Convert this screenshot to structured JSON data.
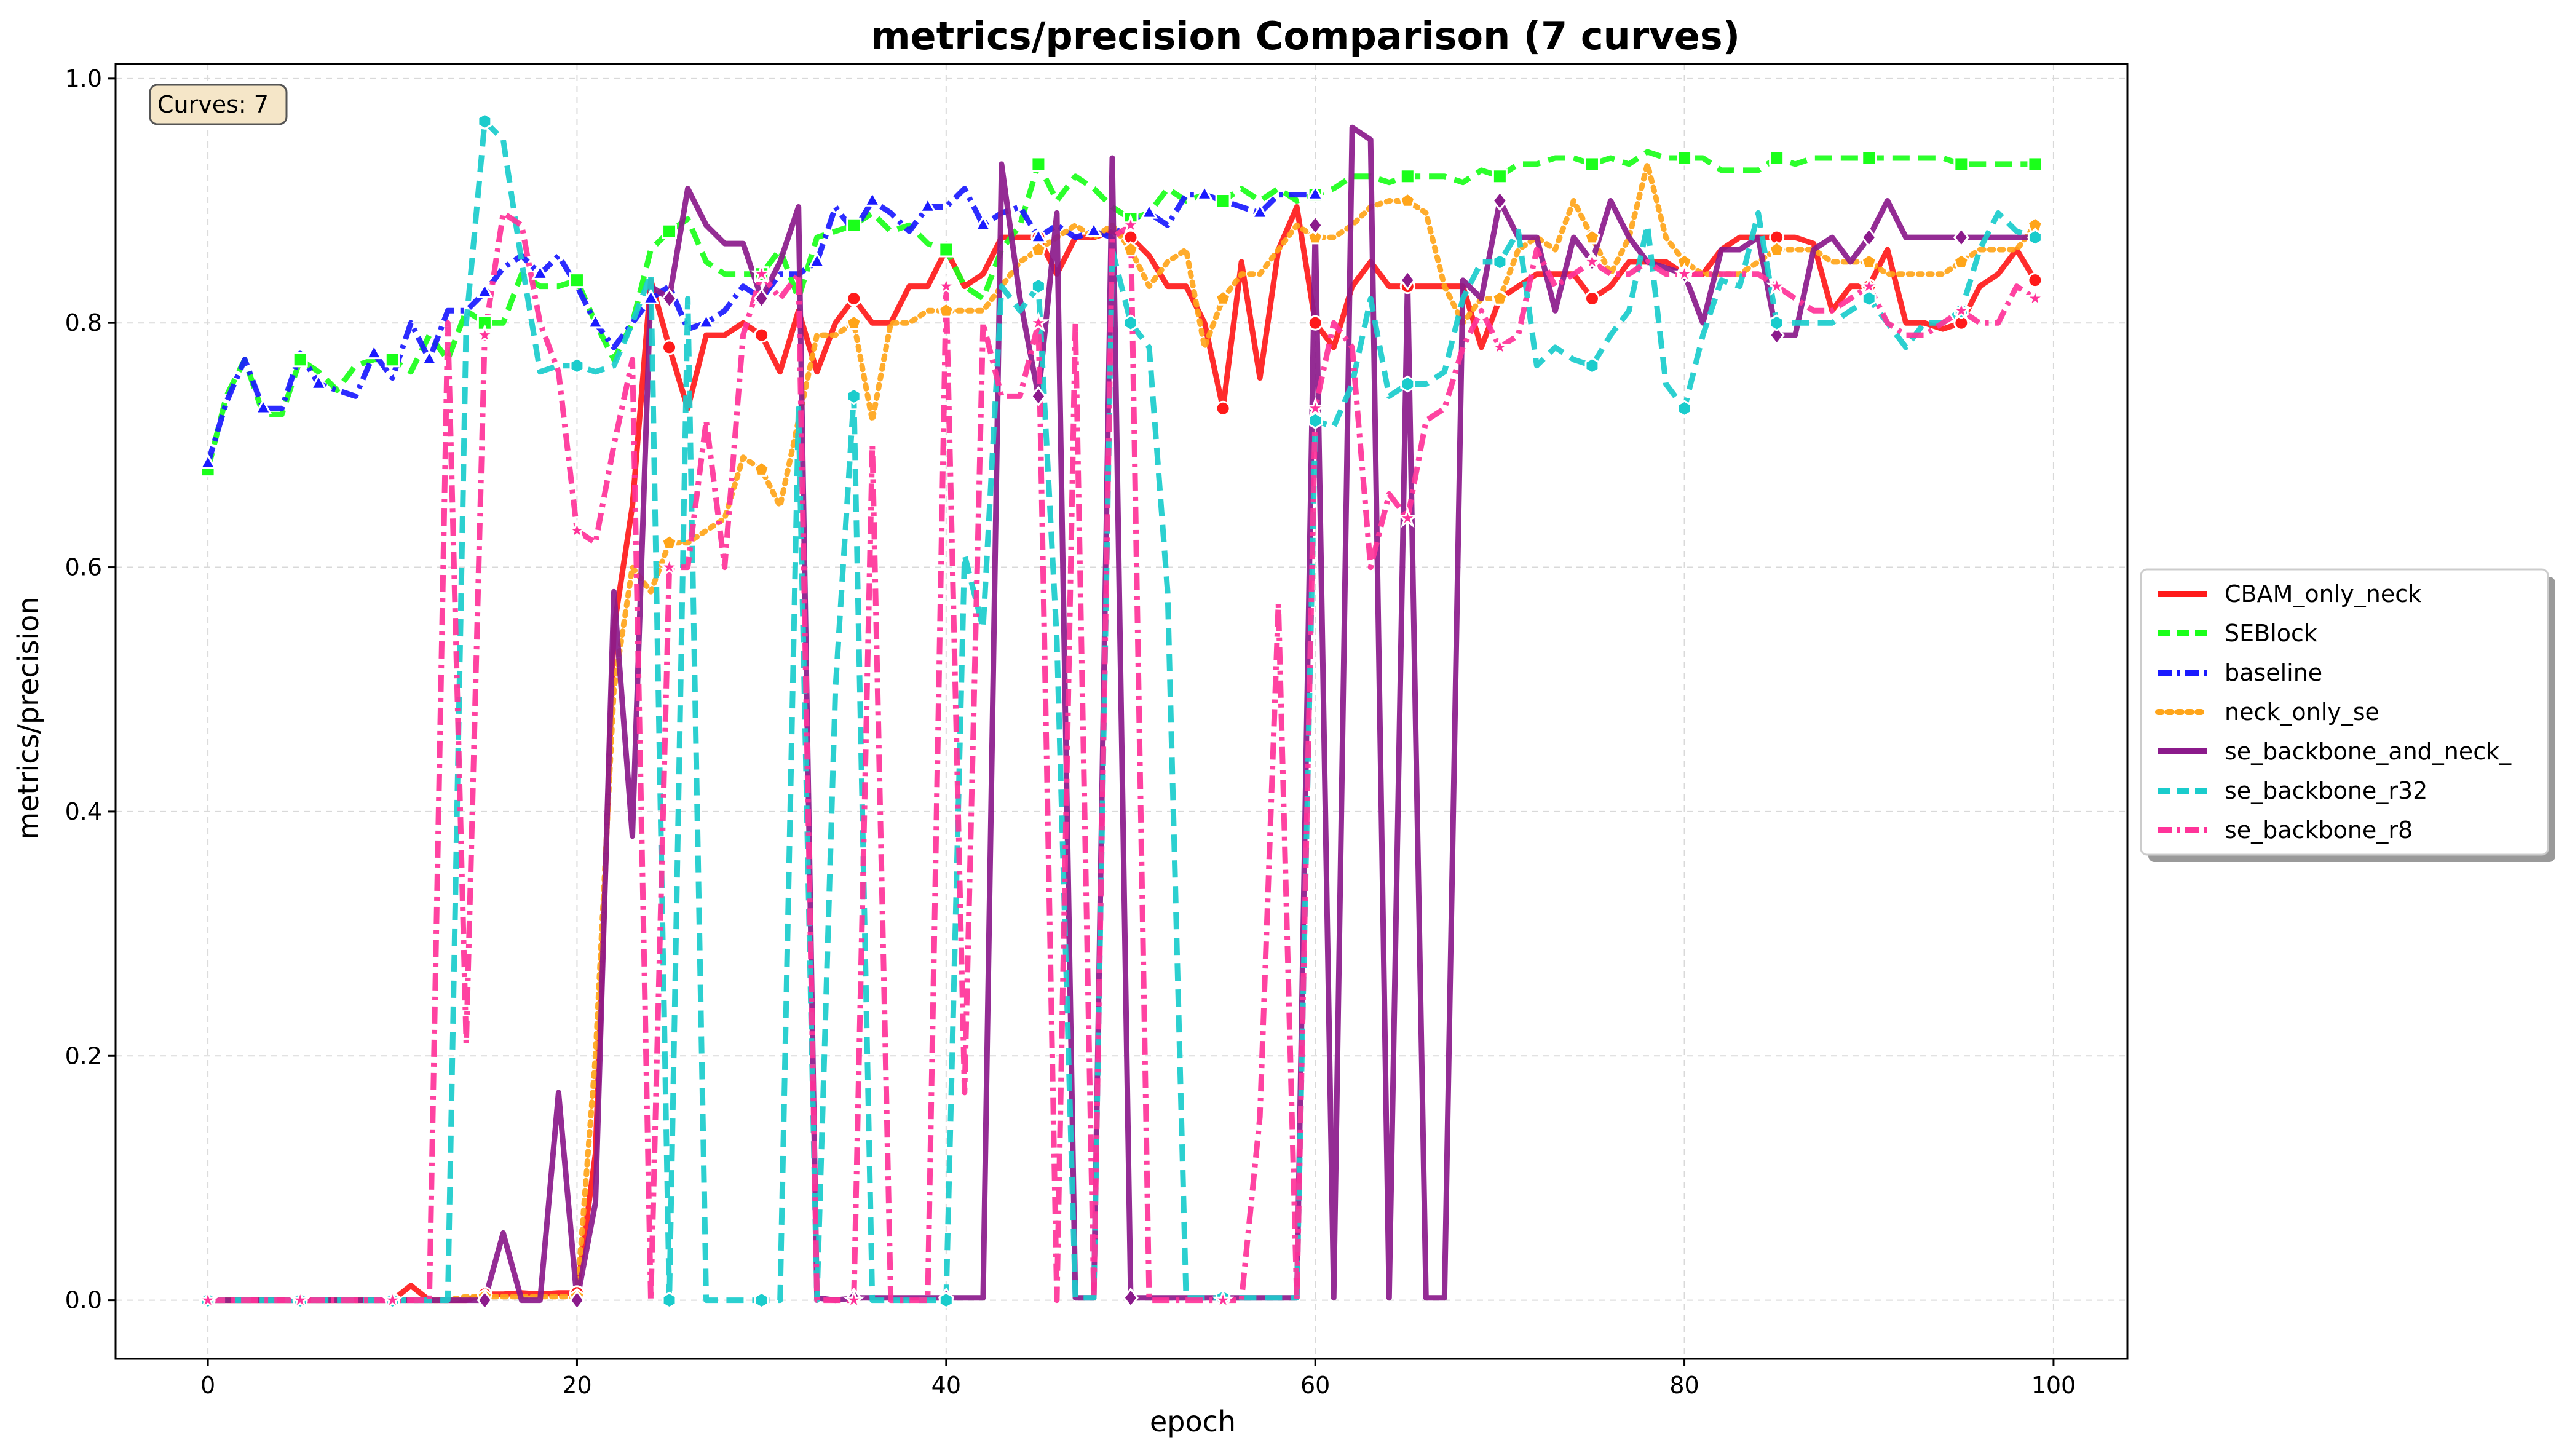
{
  "chart_data": {
    "type": "line",
    "title": "metrics/precision Comparison (7 curves)",
    "xlabel": "epoch",
    "ylabel": "metrics/precision",
    "xlim": [
      -5,
      104
    ],
    "ylim": [
      -0.048,
      1.012
    ],
    "x_ticks": [
      0,
      20,
      40,
      60,
      80,
      100
    ],
    "y_ticks": [
      0.0,
      0.2,
      0.4,
      0.6,
      0.8,
      1.0
    ],
    "x_tick_labels": [
      "0",
      "20",
      "40",
      "60",
      "80",
      "100"
    ],
    "y_tick_labels": [
      "0.0",
      "0.2",
      "0.4",
      "0.6",
      "0.8",
      "1.0"
    ],
    "grid": true,
    "legend_position": "right-outside",
    "annotation": "Curves: 7",
    "series": [
      {
        "name": "CBAM_only_neck",
        "color": "#ff1a1a",
        "dash": "solid",
        "marker": "circle",
        "marker_step": 5,
        "values": [
          0.0,
          0.0,
          0.0,
          0.0,
          0.0,
          0.0,
          0.0,
          0.0,
          0.0,
          0.0,
          0.0,
          0.012,
          0.0,
          0.0,
          0.0,
          0.005,
          0.005,
          0.006,
          0.005,
          0.006,
          0.006,
          0.12,
          0.55,
          0.65,
          0.835,
          0.78,
          0.73,
          0.79,
          0.79,
          0.8,
          0.79,
          0.76,
          0.81,
          0.76,
          0.8,
          0.82,
          0.8,
          0.8,
          0.83,
          0.83,
          0.86,
          0.83,
          0.84,
          0.87,
          0.87,
          0.87,
          0.84,
          0.87,
          0.87,
          0.875,
          0.87,
          0.855,
          0.83,
          0.83,
          0.8,
          0.73,
          0.85,
          0.755,
          0.86,
          0.895,
          0.8,
          0.78,
          0.83,
          0.85,
          0.83,
          0.83,
          0.83,
          0.83,
          0.83,
          0.78,
          0.82,
          0.83,
          0.84,
          0.84,
          0.84,
          0.82,
          0.83,
          0.85,
          0.85,
          0.85,
          0.84,
          0.84,
          0.86,
          0.87,
          0.87,
          0.87,
          0.87,
          0.865,
          0.81,
          0.83,
          0.83,
          0.86,
          0.8,
          0.8,
          0.795,
          0.8,
          0.83,
          0.84,
          0.86,
          0.835
        ]
      },
      {
        "name": "SEBlock",
        "color": "#1aff1a",
        "dash": "dash",
        "marker": "square",
        "marker_step": 5,
        "values": [
          0.68,
          0.74,
          0.77,
          0.725,
          0.725,
          0.77,
          0.76,
          0.745,
          0.765,
          0.77,
          0.77,
          0.76,
          0.79,
          0.77,
          0.81,
          0.8,
          0.8,
          0.84,
          0.83,
          0.83,
          0.835,
          0.8,
          0.77,
          0.8,
          0.86,
          0.875,
          0.885,
          0.85,
          0.84,
          0.84,
          0.84,
          0.86,
          0.82,
          0.87,
          0.875,
          0.88,
          0.89,
          0.875,
          0.88,
          0.865,
          0.86,
          0.83,
          0.82,
          0.86,
          0.88,
          0.93,
          0.9,
          0.92,
          0.91,
          0.895,
          0.885,
          0.89,
          0.91,
          0.9,
          0.905,
          0.9,
          0.91,
          0.9,
          0.91,
          0.9,
          0.905,
          0.91,
          0.92,
          0.92,
          0.915,
          0.92,
          0.92,
          0.92,
          0.915,
          0.925,
          0.92,
          0.93,
          0.93,
          0.935,
          0.935,
          0.93,
          0.935,
          0.93,
          0.94,
          0.935,
          0.935,
          0.935,
          0.925,
          0.925,
          0.925,
          0.935,
          0.93,
          0.935,
          0.935,
          0.935,
          0.935,
          0.935,
          0.935,
          0.935,
          0.935,
          0.93,
          0.93,
          0.93,
          0.93,
          0.93
        ]
      },
      {
        "name": "baseline",
        "color": "#1a1aff",
        "dash": "dashdot",
        "marker": "triangle",
        "marker_step": 3,
        "values": [
          0.685,
          0.735,
          0.77,
          0.73,
          0.73,
          0.775,
          0.75,
          0.745,
          0.74,
          0.775,
          0.755,
          0.8,
          0.77,
          0.81,
          0.81,
          0.825,
          0.845,
          0.855,
          0.84,
          0.855,
          0.83,
          0.8,
          0.78,
          0.8,
          0.82,
          0.83,
          0.795,
          0.8,
          0.81,
          0.83,
          0.82,
          0.84,
          0.84,
          0.85,
          0.895,
          0.875,
          0.9,
          0.89,
          0.875,
          0.895,
          0.895,
          0.91,
          0.88,
          0.89,
          0.895,
          0.87,
          0.88,
          0.87,
          0.875,
          0.87,
          0.885,
          0.89,
          0.88,
          0.905,
          0.905,
          0.9,
          0.895,
          0.89,
          0.905,
          0.905,
          0.905
        ]
      },
      {
        "name": "neck_only_se",
        "color": "#ffa51a",
        "dash": "dot",
        "marker": "pentagon",
        "marker_step": 5,
        "values": [
          0.0,
          0.0,
          0.0,
          0.0,
          0.0,
          0.0,
          0.0,
          0.0,
          0.0,
          0.0,
          0.0,
          0.0,
          0.0,
          0.0,
          0.003,
          0.003,
          0.003,
          0.003,
          0.003,
          0.003,
          0.003,
          0.2,
          0.5,
          0.6,
          0.58,
          0.62,
          0.62,
          0.63,
          0.64,
          0.69,
          0.68,
          0.65,
          0.72,
          0.79,
          0.79,
          0.8,
          0.72,
          0.8,
          0.8,
          0.81,
          0.81,
          0.81,
          0.81,
          0.83,
          0.85,
          0.86,
          0.87,
          0.88,
          0.87,
          0.88,
          0.86,
          0.83,
          0.85,
          0.86,
          0.78,
          0.82,
          0.84,
          0.84,
          0.86,
          0.88,
          0.87,
          0.87,
          0.88,
          0.895,
          0.9,
          0.9,
          0.89,
          0.83,
          0.8,
          0.82,
          0.82,
          0.86,
          0.87,
          0.86,
          0.9,
          0.87,
          0.84,
          0.87,
          0.93,
          0.87,
          0.85,
          0.84,
          0.84,
          0.84,
          0.85,
          0.86,
          0.86,
          0.86,
          0.85,
          0.85,
          0.85,
          0.84,
          0.84,
          0.84,
          0.84,
          0.85,
          0.86,
          0.86,
          0.86,
          0.88
        ]
      },
      {
        "name": "se_backbone_and_neck_",
        "color": "#8b1a8b",
        "dash": "solid",
        "marker": "diamond",
        "marker_step": 5,
        "values": [
          0.0,
          0.0,
          0.0,
          0.0,
          0.0,
          0.0,
          0.0,
          0.0,
          0.0,
          0.0,
          0.0,
          0.0,
          0.0,
          0.0,
          0.0,
          0.0,
          0.055,
          0.0,
          0.0,
          0.17,
          0.0,
          0.08,
          0.58,
          0.38,
          0.83,
          0.82,
          0.91,
          0.88,
          0.865,
          0.865,
          0.82,
          0.85,
          0.895,
          0.002,
          0.0,
          0.002,
          0.002,
          0.002,
          0.002,
          0.002,
          0.002,
          0.002,
          0.002,
          0.93,
          0.82,
          0.74,
          0.89,
          0.002,
          0.002,
          0.935,
          0.002,
          0.002,
          0.002,
          0.002,
          0.002,
          0.002,
          0.002,
          0.002,
          0.002,
          0.002,
          0.88,
          0.002,
          0.96,
          0.95,
          0.002,
          0.835,
          0.002,
          0.002,
          0.835,
          0.82,
          0.9,
          0.87,
          0.87,
          0.81,
          0.87,
          0.85,
          0.9,
          0.87,
          0.85,
          0.845,
          0.84,
          0.8,
          0.86,
          0.86,
          0.87,
          0.79,
          0.79,
          0.86,
          0.87,
          0.85,
          0.87,
          0.9,
          0.87,
          0.87,
          0.87,
          0.87,
          0.87,
          0.87,
          0.87,
          0.87
        ]
      },
      {
        "name": "se_backbone_r32",
        "color": "#1acccc",
        "dash": "dash",
        "marker": "hexagon",
        "marker_step": 5,
        "values": [
          0.0,
          0.0,
          0.0,
          0.0,
          0.0,
          0.0,
          0.0,
          0.0,
          0.0,
          0.0,
          0.0,
          0.0,
          0.0,
          0.0,
          0.8,
          0.965,
          0.95,
          0.85,
          0.76,
          0.765,
          0.765,
          0.76,
          0.765,
          0.8,
          0.84,
          0.0,
          0.82,
          0.0,
          0.0,
          0.0,
          0.0,
          0.0,
          0.73,
          0.0,
          0.5,
          0.74,
          0.0,
          0.0,
          0.0,
          0.0,
          0.0,
          0.61,
          0.55,
          0.83,
          0.81,
          0.83,
          0.54,
          0.002,
          0.002,
          0.86,
          0.8,
          0.78,
          0.58,
          0.002,
          0.002,
          0.002,
          0.002,
          0.002,
          0.002,
          0.002,
          0.72,
          0.715,
          0.75,
          0.82,
          0.74,
          0.75,
          0.75,
          0.76,
          0.82,
          0.85,
          0.85,
          0.875,
          0.765,
          0.78,
          0.77,
          0.765,
          0.79,
          0.81,
          0.88,
          0.75,
          0.73,
          0.79,
          0.835,
          0.83,
          0.89,
          0.8,
          0.8,
          0.8,
          0.8,
          0.81,
          0.82,
          0.8,
          0.78,
          0.8,
          0.8,
          0.81,
          0.86,
          0.89,
          0.875,
          0.87
        ]
      },
      {
        "name": "se_backbone_r8",
        "color": "#ff3399",
        "dash": "dashdot",
        "marker": "star",
        "marker_step": 5,
        "values": [
          0.0,
          0.0,
          0.0,
          0.0,
          0.0,
          0.0,
          0.0,
          0.0,
          0.0,
          0.0,
          0.0,
          0.0,
          0.0,
          0.8,
          0.21,
          0.79,
          0.89,
          0.88,
          0.8,
          0.76,
          0.63,
          0.62,
          0.7,
          0.77,
          0.0,
          0.6,
          0.6,
          0.72,
          0.6,
          0.79,
          0.84,
          0.82,
          0.84,
          0.0,
          0.0,
          0.0,
          0.7,
          0.0,
          0.0,
          0.0,
          0.83,
          0.17,
          0.8,
          0.74,
          0.74,
          0.8,
          0.0,
          0.8,
          0.002,
          0.87,
          0.88,
          0.0,
          0.0,
          0.0,
          0.0,
          0.0,
          0.0,
          0.15,
          0.57,
          0.0,
          0.73,
          0.8,
          0.78,
          0.6,
          0.66,
          0.64,
          0.72,
          0.73,
          0.78,
          0.81,
          0.78,
          0.79,
          0.86,
          0.83,
          0.84,
          0.85,
          0.84,
          0.84,
          0.85,
          0.84,
          0.84,
          0.84,
          0.84,
          0.84,
          0.84,
          0.83,
          0.82,
          0.81,
          0.81,
          0.82,
          0.83,
          0.8,
          0.79,
          0.79,
          0.8,
          0.81,
          0.8,
          0.8,
          0.83,
          0.82
        ]
      }
    ]
  }
}
